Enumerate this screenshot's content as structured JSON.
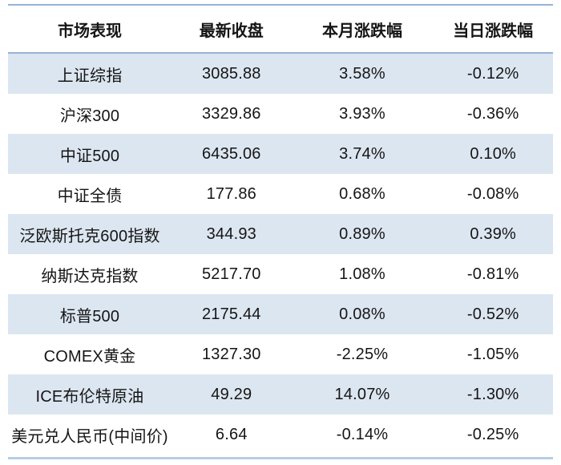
{
  "colors": {
    "stripe_blue": "#dce6f1",
    "top_rule_blue": "#95b3d7",
    "header_rule_blue": "#95b3d7",
    "bottom_rule_blue": "#b8cce4",
    "text": "#151515"
  },
  "chart_data": {
    "type": "table",
    "columns": [
      "市场表现",
      "最新收盘",
      "本月涨跌幅",
      "当日涨跌幅"
    ],
    "rows": [
      {
        "name": "上证综指",
        "close": "3085.88",
        "month_change": "3.58%",
        "day_change": "-0.12%"
      },
      {
        "name": "沪深300",
        "close": "3329.86",
        "month_change": "3.93%",
        "day_change": "-0.36%"
      },
      {
        "name": "中证500",
        "close": "6435.06",
        "month_change": "3.74%",
        "day_change": "0.10%"
      },
      {
        "name": "中证全债",
        "close": "177.86",
        "month_change": "0.68%",
        "day_change": "-0.08%"
      },
      {
        "name": "泛欧斯托克600指数",
        "close": "344.93",
        "month_change": "0.89%",
        "day_change": "0.39%"
      },
      {
        "name": "纳斯达克指数",
        "close": "5217.70",
        "month_change": "1.08%",
        "day_change": "-0.81%"
      },
      {
        "name": "标普500",
        "close": "2175.44",
        "month_change": "0.08%",
        "day_change": "-0.52%"
      },
      {
        "name": "COMEX黄金",
        "close": "1327.30",
        "month_change": "-2.25%",
        "day_change": "-1.05%"
      },
      {
        "name": "ICE布伦特原油",
        "close": "49.29",
        "month_change": "14.07%",
        "day_change": "-1.30%"
      },
      {
        "name": "美元兑人民币(中间价)",
        "close": "6.64",
        "month_change": "-0.14%",
        "day_change": "-0.25%"
      }
    ],
    "layout": {
      "striped_rows": "odd",
      "grid": "none",
      "alignment": "center"
    }
  }
}
